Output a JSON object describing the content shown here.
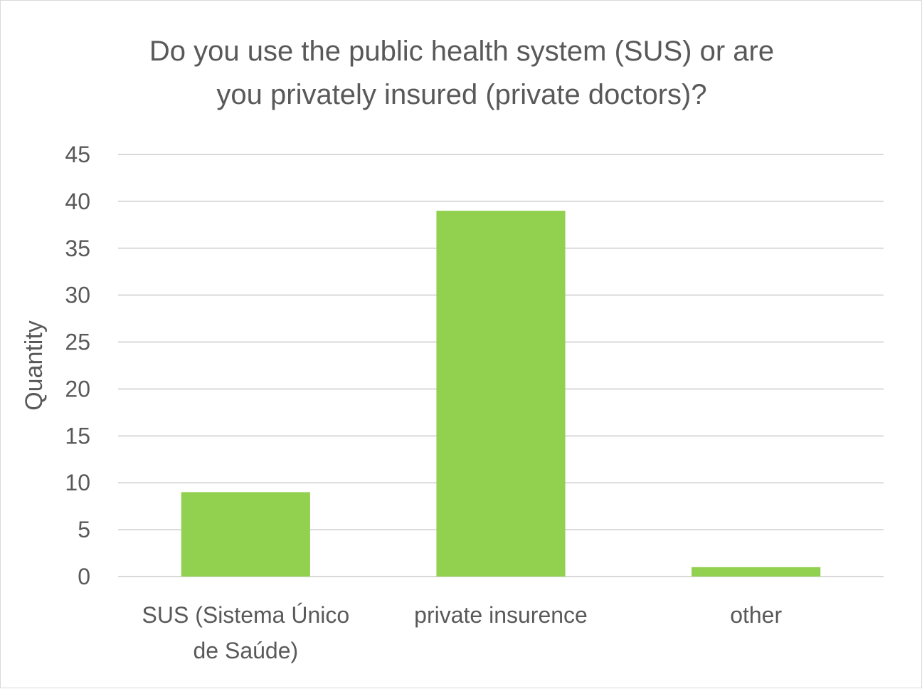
{
  "chart_data": {
    "type": "bar",
    "title_lines": [
      "Do you use the public health system (SUS) or are",
      "you privately insured (private doctors)?"
    ],
    "categories": [
      [
        "SUS (Sistema Único",
        "de Saúde)"
      ],
      [
        "private insurence"
      ],
      [
        "other"
      ]
    ],
    "values": [
      9,
      39,
      1
    ],
    "xlabel": "",
    "ylabel": "Quantity",
    "ylim": [
      0,
      45
    ],
    "yticks": [
      0,
      5,
      10,
      15,
      20,
      25,
      30,
      35,
      40,
      45
    ],
    "grid": true,
    "legend": "none",
    "bar_color": "#92d050",
    "grid_color": "#d9d9d9",
    "text_color": "#595959"
  }
}
